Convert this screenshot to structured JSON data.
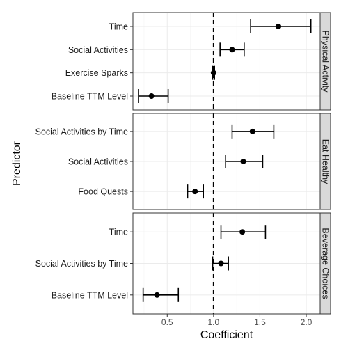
{
  "chart_data": {
    "type": "scatter",
    "variant": "coefficient-plot-with-error-bars",
    "xlabel": "Coefficient",
    "ylabel": "Predictor",
    "xlim": [
      0.13,
      2.15
    ],
    "x_ticks": [
      0.5,
      1.0,
      1.5,
      2.0
    ],
    "x_tick_labels": [
      "0.5",
      "1.0",
      "1.5",
      "2.0"
    ],
    "reference_line": {
      "x": 1.0,
      "style": "dashed"
    },
    "grid": true,
    "facet_strip_position": "right",
    "panels": [
      {
        "name": "Physical Activity",
        "predictors": [
          "Time",
          "Social Activities",
          "Exercise Sparks",
          "Baseline TTM Level"
        ],
        "estimates": [
          1.7,
          1.2,
          1.0,
          0.33
        ],
        "lower": [
          1.4,
          1.07,
          0.99,
          0.19
        ],
        "upper": [
          2.05,
          1.33,
          1.01,
          0.51
        ]
      },
      {
        "name": "Eat Healthy",
        "predictors": [
          "Social Activities by Time",
          "Social Activities",
          "Food Quests"
        ],
        "estimates": [
          1.42,
          1.32,
          0.8
        ],
        "lower": [
          1.2,
          1.13,
          0.72
        ],
        "upper": [
          1.65,
          1.53,
          0.89
        ]
      },
      {
        "name": "Beverage Choices",
        "predictors": [
          "Time",
          "Social Activities by Time",
          "Baseline TTM Level"
        ],
        "estimates": [
          1.31,
          1.08,
          0.39
        ],
        "lower": [
          1.08,
          0.99,
          0.24
        ],
        "upper": [
          1.56,
          1.16,
          0.62
        ]
      }
    ]
  }
}
